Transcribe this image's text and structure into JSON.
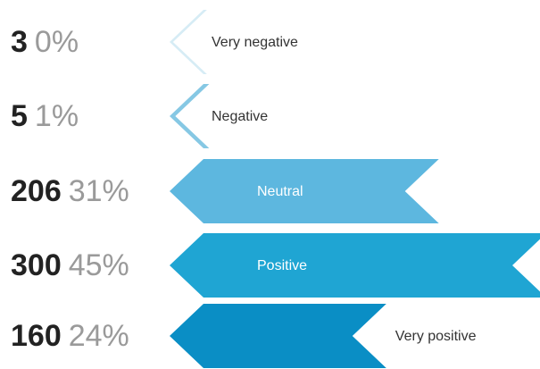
{
  "chart_data": {
    "type": "bar",
    "orientation": "horizontal",
    "categories": [
      "Very negative",
      "Negative",
      "Neutral",
      "Positive",
      "Very positive"
    ],
    "values": [
      3,
      5,
      206,
      300,
      160
    ],
    "percent_labels": [
      "0%",
      "1%",
      "31%",
      "45%",
      "24%"
    ],
    "colors": [
      "#d6ecf5",
      "#86c8e4",
      "#5db7df",
      "#1fa5d3",
      "#0a8ec5"
    ],
    "xlim": [
      0,
      300
    ]
  }
}
